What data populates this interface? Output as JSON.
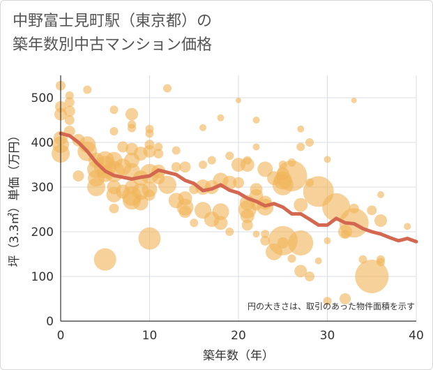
{
  "title": {
    "line1": "中野富士見町駅（東京都）の",
    "line2": "築年数別中古マンション価格"
  },
  "chart_data": {
    "type": "scatter",
    "xlabel": "築年数（年）",
    "ylabel": "坪（3.3㎡）単価（万円）",
    "xlim": [
      0,
      40
    ],
    "ylim": [
      0,
      550
    ],
    "xticks": [
      0,
      10,
      20,
      30,
      40
    ],
    "yticks": [
      0,
      100,
      200,
      300,
      400,
      500
    ],
    "grid": true,
    "note": "円の大きさは、取引のあった物件面積を示す",
    "colors": {
      "bubble": "#f0b45a",
      "trend": "#d4674f",
      "grid": "#d9dde6"
    },
    "points": [
      {
        "x": 0,
        "y": 527,
        "s": 7
      },
      {
        "x": 0,
        "y": 480,
        "s": 8
      },
      {
        "x": 0,
        "y": 463,
        "s": 9
      },
      {
        "x": 1,
        "y": 505,
        "s": 6
      },
      {
        "x": 1,
        "y": 490,
        "s": 7
      },
      {
        "x": 1,
        "y": 470,
        "s": 8
      },
      {
        "x": 1,
        "y": 450,
        "s": 7
      },
      {
        "x": 3,
        "y": 518,
        "s": 6
      },
      {
        "x": 6,
        "y": 473,
        "s": 6
      },
      {
        "x": 8,
        "y": 463,
        "s": 9
      },
      {
        "x": 12,
        "y": 521,
        "s": 6
      },
      {
        "x": 0,
        "y": 410,
        "s": 10
      },
      {
        "x": 0,
        "y": 395,
        "s": 12
      },
      {
        "x": 0,
        "y": 375,
        "s": 13
      },
      {
        "x": 1,
        "y": 425,
        "s": 8
      },
      {
        "x": 2,
        "y": 405,
        "s": 9
      },
      {
        "x": 2,
        "y": 325,
        "s": 8
      },
      {
        "x": 3,
        "y": 395,
        "s": 12
      },
      {
        "x": 3,
        "y": 380,
        "s": 14
      },
      {
        "x": 4,
        "y": 360,
        "s": 11
      },
      {
        "x": 4,
        "y": 340,
        "s": 13
      },
      {
        "x": 4,
        "y": 320,
        "s": 12
      },
      {
        "x": 4,
        "y": 300,
        "s": 13
      },
      {
        "x": 5,
        "y": 360,
        "s": 13
      },
      {
        "x": 5,
        "y": 345,
        "s": 16
      },
      {
        "x": 5,
        "y": 330,
        "s": 12
      },
      {
        "x": 5,
        "y": 138,
        "s": 16
      },
      {
        "x": 6,
        "y": 425,
        "s": 6
      },
      {
        "x": 6,
        "y": 360,
        "s": 12
      },
      {
        "x": 6,
        "y": 335,
        "s": 15
      },
      {
        "x": 6,
        "y": 300,
        "s": 10
      },
      {
        "x": 6,
        "y": 283,
        "s": 11
      },
      {
        "x": 6,
        "y": 252,
        "s": 7
      },
      {
        "x": 7,
        "y": 390,
        "s": 8
      },
      {
        "x": 7,
        "y": 345,
        "s": 12
      },
      {
        "x": 7,
        "y": 290,
        "s": 10
      },
      {
        "x": 8,
        "y": 440,
        "s": 6
      },
      {
        "x": 8,
        "y": 432,
        "s": 6
      },
      {
        "x": 8,
        "y": 385,
        "s": 9
      },
      {
        "x": 8,
        "y": 360,
        "s": 11
      },
      {
        "x": 8,
        "y": 335,
        "s": 12
      },
      {
        "x": 8,
        "y": 300,
        "s": 10
      },
      {
        "x": 8,
        "y": 280,
        "s": 14
      },
      {
        "x": 8,
        "y": 270,
        "s": 13
      },
      {
        "x": 9,
        "y": 375,
        "s": 10
      },
      {
        "x": 9,
        "y": 320,
        "s": 11
      },
      {
        "x": 9,
        "y": 290,
        "s": 12
      },
      {
        "x": 9,
        "y": 265,
        "s": 11
      },
      {
        "x": 10,
        "y": 430,
        "s": 6
      },
      {
        "x": 10,
        "y": 420,
        "s": 6
      },
      {
        "x": 10,
        "y": 395,
        "s": 7
      },
      {
        "x": 10,
        "y": 380,
        "s": 9
      },
      {
        "x": 10,
        "y": 330,
        "s": 14
      },
      {
        "x": 10,
        "y": 295,
        "s": 11
      },
      {
        "x": 10,
        "y": 282,
        "s": 8
      },
      {
        "x": 10,
        "y": 185,
        "s": 16
      },
      {
        "x": 11,
        "y": 390,
        "s": 6
      },
      {
        "x": 11,
        "y": 375,
        "s": 7
      },
      {
        "x": 11,
        "y": 335,
        "s": 10
      },
      {
        "x": 11,
        "y": 320,
        "s": 9
      },
      {
        "x": 12,
        "y": 305,
        "s": 13
      },
      {
        "x": 13,
        "y": 382,
        "s": 6
      },
      {
        "x": 13,
        "y": 345,
        "s": 7
      },
      {
        "x": 13,
        "y": 270,
        "s": 11
      },
      {
        "x": 14,
        "y": 345,
        "s": 8
      },
      {
        "x": 14,
        "y": 275,
        "s": 10
      },
      {
        "x": 14,
        "y": 255,
        "s": 12
      },
      {
        "x": 14,
        "y": 245,
        "s": 9
      },
      {
        "x": 15,
        "y": 295,
        "s": 7
      },
      {
        "x": 15,
        "y": 220,
        "s": 6
      },
      {
        "x": 16,
        "y": 433,
        "s": 5
      },
      {
        "x": 16,
        "y": 350,
        "s": 6
      },
      {
        "x": 16,
        "y": 300,
        "s": 11
      },
      {
        "x": 16,
        "y": 248,
        "s": 12
      },
      {
        "x": 17,
        "y": 360,
        "s": 6
      },
      {
        "x": 17,
        "y": 300,
        "s": 10
      },
      {
        "x": 17,
        "y": 228,
        "s": 11
      },
      {
        "x": 18,
        "y": 455,
        "s": 5
      },
      {
        "x": 18,
        "y": 315,
        "s": 11
      },
      {
        "x": 18,
        "y": 245,
        "s": 12
      },
      {
        "x": 18,
        "y": 220,
        "s": 10
      },
      {
        "x": 19,
        "y": 370,
        "s": 6
      },
      {
        "x": 19,
        "y": 310,
        "s": 10
      },
      {
        "x": 19,
        "y": 200,
        "s": 6
      },
      {
        "x": 20,
        "y": 494,
        "s": 4
      },
      {
        "x": 20,
        "y": 350,
        "s": 10
      },
      {
        "x": 20,
        "y": 310,
        "s": 8
      },
      {
        "x": 21,
        "y": 360,
        "s": 6
      },
      {
        "x": 21,
        "y": 350,
        "s": 10
      },
      {
        "x": 21,
        "y": 265,
        "s": 11
      },
      {
        "x": 21,
        "y": 250,
        "s": 13
      },
      {
        "x": 21,
        "y": 235,
        "s": 10
      },
      {
        "x": 21,
        "y": 215,
        "s": 8
      },
      {
        "x": 22,
        "y": 450,
        "s": 5
      },
      {
        "x": 22,
        "y": 390,
        "s": 5
      },
      {
        "x": 22,
        "y": 295,
        "s": 9
      },
      {
        "x": 22,
        "y": 280,
        "s": 10
      },
      {
        "x": 22,
        "y": 260,
        "s": 8
      },
      {
        "x": 22,
        "y": 195,
        "s": 5
      },
      {
        "x": 23,
        "y": 340,
        "s": 11
      },
      {
        "x": 23,
        "y": 265,
        "s": 10
      },
      {
        "x": 23,
        "y": 255,
        "s": 12
      },
      {
        "x": 23,
        "y": 195,
        "s": 6
      },
      {
        "x": 23,
        "y": 180,
        "s": 7
      },
      {
        "x": 24,
        "y": 320,
        "s": 10
      },
      {
        "x": 24,
        "y": 155,
        "s": 12
      },
      {
        "x": 25,
        "y": 350,
        "s": 6
      },
      {
        "x": 25,
        "y": 330,
        "s": 9
      },
      {
        "x": 25,
        "y": 315,
        "s": 13
      },
      {
        "x": 25,
        "y": 305,
        "s": 15
      },
      {
        "x": 25,
        "y": 180,
        "s": 21
      },
      {
        "x": 25,
        "y": 175,
        "s": 8
      },
      {
        "x": 26,
        "y": 355,
        "s": 6
      },
      {
        "x": 26,
        "y": 325,
        "s": 22
      },
      {
        "x": 26,
        "y": 140,
        "s": 6
      },
      {
        "x": 27,
        "y": 430,
        "s": 5
      },
      {
        "x": 27,
        "y": 390,
        "s": 6
      },
      {
        "x": 27,
        "y": 260,
        "s": 10
      },
      {
        "x": 27,
        "y": 175,
        "s": 18
      },
      {
        "x": 27,
        "y": 112,
        "s": 9
      },
      {
        "x": 28,
        "y": 400,
        "s": 6
      },
      {
        "x": 28,
        "y": 310,
        "s": 6
      },
      {
        "x": 28,
        "y": 100,
        "s": 7
      },
      {
        "x": 29,
        "y": 290,
        "s": 22
      },
      {
        "x": 29,
        "y": 135,
        "s": 5
      },
      {
        "x": 30,
        "y": 362,
        "s": 5
      },
      {
        "x": 30,
        "y": 180,
        "s": 5
      },
      {
        "x": 30,
        "y": 45,
        "s": 6
      },
      {
        "x": 31,
        "y": 255,
        "s": 20
      },
      {
        "x": 32,
        "y": 200,
        "s": 10
      },
      {
        "x": 32,
        "y": 195,
        "s": 6
      },
      {
        "x": 32,
        "y": 50,
        "s": 8
      },
      {
        "x": 33,
        "y": 494,
        "s": 4
      },
      {
        "x": 33,
        "y": 252,
        "s": 7
      },
      {
        "x": 33,
        "y": 220,
        "s": 21
      },
      {
        "x": 34,
        "y": 138,
        "s": 6
      },
      {
        "x": 35,
        "y": 248,
        "s": 7
      },
      {
        "x": 35,
        "y": 100,
        "s": 24
      },
      {
        "x": 36,
        "y": 283,
        "s": 5
      },
      {
        "x": 36,
        "y": 225,
        "s": 9
      },
      {
        "x": 36,
        "y": 138,
        "s": 6
      },
      {
        "x": 36,
        "y": 132,
        "s": 6
      },
      {
        "x": 39,
        "y": 212,
        "s": 5
      }
    ],
    "trend": [
      {
        "x": 0,
        "y": 420
      },
      {
        "x": 1,
        "y": 415
      },
      {
        "x": 2,
        "y": 400
      },
      {
        "x": 3,
        "y": 380
      },
      {
        "x": 4,
        "y": 355
      },
      {
        "x": 5,
        "y": 336
      },
      {
        "x": 6,
        "y": 326
      },
      {
        "x": 7,
        "y": 322
      },
      {
        "x": 8,
        "y": 318
      },
      {
        "x": 9,
        "y": 322
      },
      {
        "x": 10,
        "y": 325
      },
      {
        "x": 11,
        "y": 338
      },
      {
        "x": 12,
        "y": 333
      },
      {
        "x": 13,
        "y": 328
      },
      {
        "x": 14,
        "y": 315
      },
      {
        "x": 15,
        "y": 308
      },
      {
        "x": 16,
        "y": 292
      },
      {
        "x": 17,
        "y": 296
      },
      {
        "x": 18,
        "y": 305
      },
      {
        "x": 19,
        "y": 293
      },
      {
        "x": 20,
        "y": 287
      },
      {
        "x": 21,
        "y": 275
      },
      {
        "x": 22,
        "y": 268
      },
      {
        "x": 23,
        "y": 258
      },
      {
        "x": 24,
        "y": 263
      },
      {
        "x": 25,
        "y": 255
      },
      {
        "x": 26,
        "y": 240
      },
      {
        "x": 27,
        "y": 240
      },
      {
        "x": 28,
        "y": 228
      },
      {
        "x": 29,
        "y": 215
      },
      {
        "x": 30,
        "y": 215
      },
      {
        "x": 31,
        "y": 230
      },
      {
        "x": 32,
        "y": 220
      },
      {
        "x": 33,
        "y": 218
      },
      {
        "x": 34,
        "y": 207
      },
      {
        "x": 35,
        "y": 200
      },
      {
        "x": 36,
        "y": 195
      },
      {
        "x": 37,
        "y": 187
      },
      {
        "x": 38,
        "y": 180
      },
      {
        "x": 39,
        "y": 185
      },
      {
        "x": 40,
        "y": 178
      }
    ]
  }
}
